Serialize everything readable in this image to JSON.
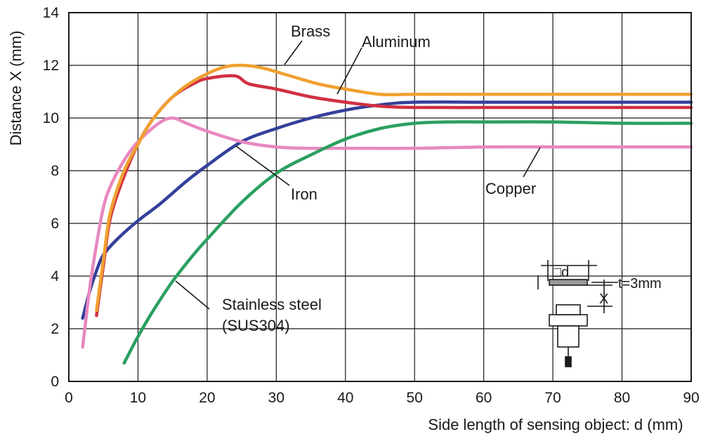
{
  "chart_data": {
    "type": "line",
    "xlabel": "Side length of sensing object: d (mm)",
    "ylabel": "Distance X (mm)",
    "xlim": [
      0,
      90
    ],
    "ylim": [
      0,
      14
    ],
    "xticks": [
      0,
      10,
      20,
      30,
      40,
      50,
      60,
      70,
      80,
      90
    ],
    "yticks": [
      0,
      2,
      4,
      6,
      8,
      10,
      12,
      14
    ],
    "grid": true,
    "legend": "inline-labels",
    "series": [
      {
        "name": "Brass",
        "color": "#f0a030",
        "x": [
          4,
          5,
          6,
          8,
          10,
          12,
          15,
          18,
          22,
          25,
          28,
          32,
          36,
          40,
          45,
          50,
          60,
          70,
          80,
          90
        ],
        "y": [
          2.7,
          4.6,
          6.4,
          8.0,
          9.0,
          9.9,
          10.8,
          11.4,
          11.9,
          12.0,
          11.9,
          11.6,
          11.3,
          11.1,
          10.9,
          10.9,
          10.9,
          10.9,
          10.9,
          10.9
        ]
      },
      {
        "name": "Aluminum",
        "color": "#d03040",
        "x": [
          4,
          5,
          6,
          8,
          10,
          12,
          15,
          18,
          20,
          24,
          26,
          30,
          35,
          40,
          45,
          50,
          60,
          70,
          80,
          90
        ],
        "y": [
          2.5,
          4.4,
          6.2,
          7.8,
          9.0,
          9.9,
          10.8,
          11.3,
          11.5,
          11.6,
          11.3,
          11.1,
          10.8,
          10.6,
          10.45,
          10.4,
          10.4,
          10.4,
          10.4,
          10.4
        ]
      },
      {
        "name": "Iron",
        "color": "#34409a",
        "x": [
          2,
          3,
          4,
          5,
          7,
          10,
          13,
          17,
          20,
          25,
          30,
          35,
          40,
          45,
          50,
          60,
          70,
          80,
          90
        ],
        "y": [
          2.4,
          3.4,
          4.2,
          4.8,
          5.4,
          6.1,
          6.7,
          7.6,
          8.2,
          9.1,
          9.6,
          10.0,
          10.3,
          10.5,
          10.6,
          10.6,
          10.6,
          10.6,
          10.6
        ]
      },
      {
        "name": "Copper",
        "color": "#e888c0",
        "x": [
          2,
          3,
          4,
          5,
          6,
          8,
          10,
          13,
          15,
          17,
          20,
          25,
          30,
          35,
          40,
          50,
          60,
          70,
          80,
          90
        ],
        "y": [
          1.3,
          3.5,
          5.2,
          6.6,
          7.4,
          8.4,
          9.1,
          9.8,
          10.0,
          9.8,
          9.5,
          9.1,
          8.9,
          8.85,
          8.85,
          8.85,
          8.9,
          8.9,
          8.9,
          8.9
        ]
      },
      {
        "name": "Stainless steel (SUS304)",
        "color": "#2aa060",
        "x": [
          8,
          10,
          12,
          15,
          18,
          20,
          25,
          30,
          35,
          40,
          45,
          50,
          55,
          60,
          70,
          80,
          90
        ],
        "y": [
          0.7,
          1.7,
          2.6,
          3.8,
          4.8,
          5.4,
          6.8,
          7.9,
          8.6,
          9.2,
          9.6,
          9.8,
          9.85,
          9.85,
          9.85,
          9.8,
          9.8
        ]
      }
    ],
    "annotations": [
      {
        "text": "Brass",
        "series": "Brass"
      },
      {
        "text": "Aluminum",
        "series": "Aluminum"
      },
      {
        "text": "Iron",
        "series": "Iron"
      },
      {
        "text": "Copper",
        "series": "Copper"
      },
      {
        "lines": [
          "Stainless steel",
          "(SUS304)"
        ],
        "series": "Stainless steel (SUS304)"
      }
    ],
    "diagram": {
      "object_label": "□d",
      "thickness_label": "t=3mm",
      "distance_label": "X"
    }
  }
}
